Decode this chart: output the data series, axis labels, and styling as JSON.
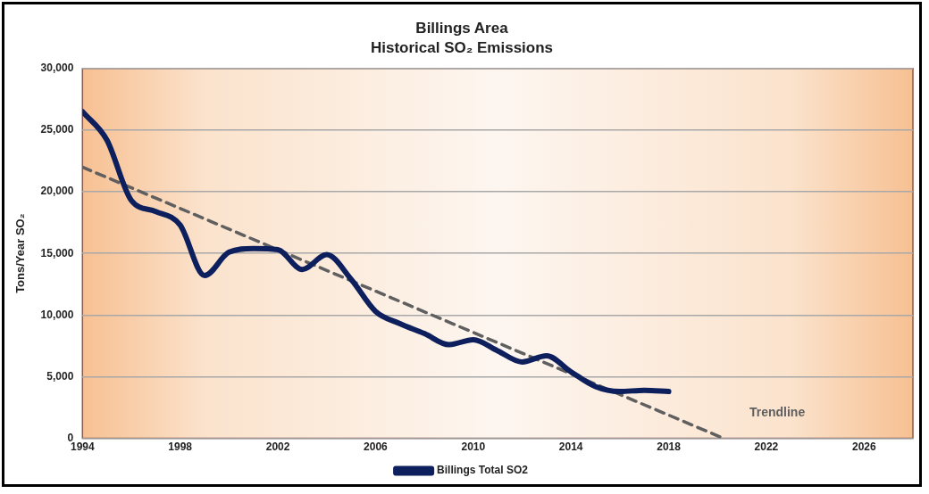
{
  "chart_data": {
    "type": "line",
    "title": "Billings Area",
    "subtitle": "Historical SO₂ Emissions",
    "ylabel": "Tons/Year SO₂",
    "x": [
      1994,
      1995,
      1996,
      1997,
      1998,
      1999,
      2000,
      2001,
      2002,
      2003,
      2004,
      2005,
      2006,
      2007,
      2008,
      2009,
      2010,
      2011,
      2012,
      2013,
      2014,
      2015,
      2016,
      2017,
      2018
    ],
    "series": [
      {
        "name": "Billings Total SO2",
        "color": "#0d1f5c",
        "line_style": "solid",
        "values": [
          26500,
          24200,
          19300,
          18400,
          17300,
          13200,
          15100,
          15400,
          15300,
          13700,
          14900,
          12900,
          10300,
          9300,
          8500,
          7600,
          8000,
          7100,
          6200,
          6700,
          5400,
          4200,
          3800,
          3900,
          3800
        ]
      },
      {
        "type": "line",
        "color": "#5f5f5f",
        "line_style": "dashed",
        "x": [
          1994,
          2020.25
        ],
        "values": [
          22000,
          0
        ]
      }
    ],
    "xlim": [
      1994,
      2028
    ],
    "xticks": [
      1994,
      1998,
      2002,
      2006,
      2010,
      2014,
      2018,
      2022,
      2026
    ],
    "ylim": [
      0,
      30000
    ],
    "yticks": [
      {
        "value": 0,
        "label": "0"
      },
      {
        "value": 5000,
        "label": "5,000"
      },
      {
        "value": 10000,
        "label": "10,000"
      },
      {
        "value": 15000,
        "label": "15,000"
      },
      {
        "value": 20000,
        "label": "20,000"
      },
      {
        "value": 25000,
        "label": "25,000"
      },
      {
        "value": 30000,
        "label": "30,000"
      }
    ],
    "grid": "y",
    "legend": "bottom",
    "marker": "none",
    "annotations": [
      "Trendline"
    ]
  }
}
